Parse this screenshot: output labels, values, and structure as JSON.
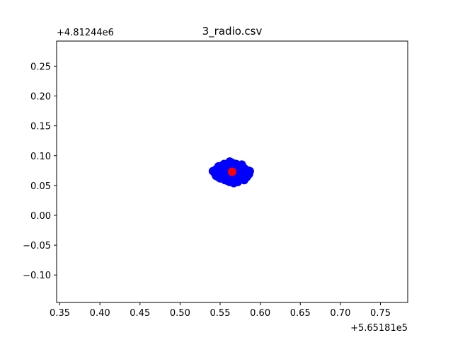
{
  "chart_data": {
    "type": "scatter",
    "title": "3_radio.csv",
    "xlabel": "",
    "ylabel": "",
    "x_offset_label": "+5.65181e5",
    "y_offset_label": "+4.81244e6",
    "xlim": [
      0.346,
      0.784
    ],
    "ylim": [
      -0.146,
      0.292
    ],
    "x_ticks": [
      0.35,
      0.4,
      0.45,
      0.5,
      0.55,
      0.6,
      0.65,
      0.7,
      0.75
    ],
    "x_tick_labels": [
      "0.35",
      "0.40",
      "0.45",
      "0.50",
      "0.55",
      "0.60",
      "0.65",
      "0.70",
      "0.75"
    ],
    "y_ticks": [
      -0.1,
      -0.05,
      0.0,
      0.05,
      0.1,
      0.15,
      0.2,
      0.25
    ],
    "y_tick_labels": [
      "−0.10",
      "−0.05",
      "0.00",
      "0.05",
      "0.10",
      "0.15",
      "0.20",
      "0.25"
    ],
    "grid": false,
    "series": [
      {
        "color": "#0000ff",
        "points": [
          [
            0.562,
            0.09
          ],
          [
            0.555,
            0.086
          ],
          [
            0.57,
            0.086
          ],
          [
            0.548,
            0.082
          ],
          [
            0.56,
            0.083
          ],
          [
            0.575,
            0.082
          ],
          [
            0.552,
            0.079
          ],
          [
            0.566,
            0.08
          ],
          [
            0.58,
            0.079
          ],
          [
            0.545,
            0.077
          ],
          [
            0.558,
            0.078
          ],
          [
            0.572,
            0.077
          ],
          [
            0.585,
            0.075
          ],
          [
            0.55,
            0.075
          ],
          [
            0.563,
            0.076
          ],
          [
            0.578,
            0.074
          ],
          [
            0.543,
            0.073
          ],
          [
            0.556,
            0.073
          ],
          [
            0.569,
            0.072
          ],
          [
            0.582,
            0.072
          ],
          [
            0.547,
            0.07
          ],
          [
            0.56,
            0.07
          ],
          [
            0.574,
            0.07
          ],
          [
            0.586,
            0.069
          ],
          [
            0.552,
            0.068
          ],
          [
            0.566,
            0.067
          ],
          [
            0.579,
            0.067
          ],
          [
            0.545,
            0.066
          ],
          [
            0.558,
            0.065
          ],
          [
            0.571,
            0.064
          ],
          [
            0.583,
            0.064
          ],
          [
            0.55,
            0.062
          ],
          [
            0.563,
            0.062
          ],
          [
            0.576,
            0.061
          ],
          [
            0.556,
            0.059
          ],
          [
            0.568,
            0.058
          ],
          [
            0.58,
            0.059
          ],
          [
            0.562,
            0.056
          ],
          [
            0.572,
            0.056
          ],
          [
            0.567,
            0.054
          ],
          [
            0.553,
            0.084
          ],
          [
            0.577,
            0.085
          ],
          [
            0.541,
            0.074
          ],
          [
            0.587,
            0.074
          ],
          [
            0.544,
            0.069
          ],
          [
            0.584,
            0.066
          ],
          [
            0.565,
            0.088
          ],
          [
            0.559,
            0.058
          ],
          [
            0.575,
            0.06
          ],
          [
            0.548,
            0.064
          ]
        ]
      },
      {
        "color": "#ff0000",
        "points": [
          [
            0.565,
            0.073
          ]
        ]
      }
    ]
  }
}
